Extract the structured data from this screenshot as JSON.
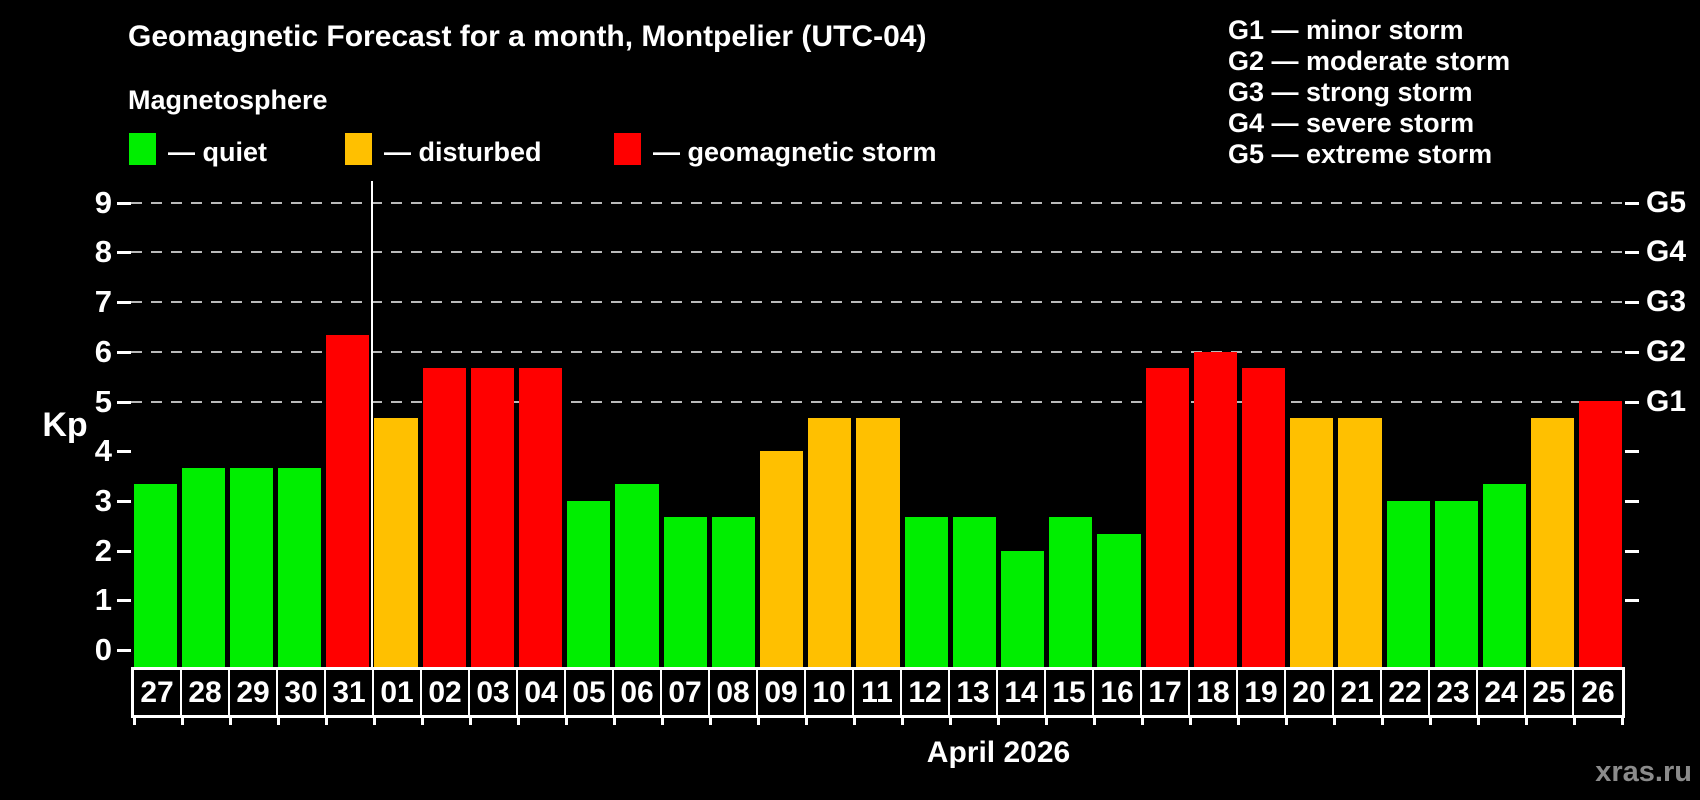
{
  "subtitle": "Magnetosphere",
  "legend": {
    "quiet": "— quiet",
    "disturbed": "— disturbed",
    "storm": "— geomagnetic storm"
  },
  "storm_scale": [
    "G1 — minor storm",
    "G2 — moderate storm",
    "G3 — strong storm",
    "G4 — severe storm",
    "G5 — extreme storm"
  ],
  "watermark": "xras.ru",
  "chart_data": {
    "type": "bar",
    "title": "Geomagnetic Forecast for a month, Montpelier (UTC-04)",
    "ylabel": "Kp",
    "xlabel": "April 2026",
    "ylim": [
      0,
      9
    ],
    "y_ticks": [
      0,
      1,
      2,
      3,
      4,
      5,
      6,
      7,
      8,
      9
    ],
    "gridlines_at_kp": [
      5,
      6,
      7,
      8,
      9
    ],
    "right_axis": {
      "ticks": [
        1,
        2,
        3,
        4,
        5,
        6,
        7,
        8,
        9
      ],
      "labels": [
        {
          "kp": 5,
          "text": "G1"
        },
        {
          "kp": 6,
          "text": "G2"
        },
        {
          "kp": 7,
          "text": "G3"
        },
        {
          "kp": 8,
          "text": "G4"
        },
        {
          "kp": 9,
          "text": "G5"
        }
      ]
    },
    "month_separator_after_category": "31",
    "status_colors": {
      "quiet": "#00ee00",
      "disturbed": "#ffc000",
      "storm": "#ff0000"
    },
    "categories": [
      "27",
      "28",
      "29",
      "30",
      "31",
      "01",
      "02",
      "03",
      "04",
      "05",
      "06",
      "07",
      "08",
      "09",
      "10",
      "11",
      "12",
      "13",
      "14",
      "15",
      "16",
      "17",
      "18",
      "19",
      "20",
      "21",
      "22",
      "23",
      "24",
      "25",
      "26"
    ],
    "values": [
      3.33,
      3.67,
      3.67,
      3.67,
      6.33,
      4.67,
      5.67,
      5.67,
      5.67,
      3.0,
      3.33,
      2.67,
      2.67,
      4.0,
      4.67,
      4.67,
      2.67,
      2.67,
      2.0,
      2.67,
      2.33,
      5.67,
      6.0,
      5.67,
      4.67,
      4.67,
      3.0,
      3.0,
      3.33,
      4.67,
      5.0
    ],
    "statuses": [
      "quiet",
      "quiet",
      "quiet",
      "quiet",
      "storm",
      "disturbed",
      "storm",
      "storm",
      "storm",
      "quiet",
      "quiet",
      "quiet",
      "quiet",
      "disturbed",
      "disturbed",
      "disturbed",
      "quiet",
      "quiet",
      "quiet",
      "quiet",
      "quiet",
      "storm",
      "storm",
      "storm",
      "disturbed",
      "disturbed",
      "quiet",
      "quiet",
      "quiet",
      "disturbed",
      "storm"
    ]
  }
}
